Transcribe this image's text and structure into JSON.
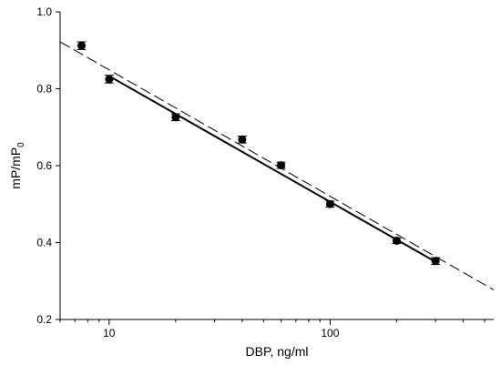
{
  "chart_data": {
    "type": "scatter",
    "xlabel": "DBP, ng/ml",
    "ylabel_main": "mP/mP",
    "ylabel_sub": "0",
    "xscale": "log",
    "xlim": [
      6,
      550
    ],
    "ylim": [
      0.2,
      1.0
    ],
    "yticks": [
      0.2,
      0.4,
      0.6,
      0.8,
      1.0
    ],
    "ytick_labels": [
      "0.2",
      "0.4",
      "0.6",
      "0.8",
      "1.0"
    ],
    "xticks": [
      10,
      100
    ],
    "xtick_labels": [
      "10",
      "100"
    ],
    "grid": false,
    "legend": "none",
    "points": [
      {
        "x": 7.5,
        "y": 0.912,
        "err": 0.01
      },
      {
        "x": 10,
        "y": 0.825,
        "err": 0.01
      },
      {
        "x": 20,
        "y": 0.726,
        "err": 0.009
      },
      {
        "x": 40,
        "y": 0.668,
        "err": 0.009
      },
      {
        "x": 60,
        "y": 0.601,
        "err": 0.008
      },
      {
        "x": 100,
        "y": 0.5,
        "err": 0.008
      },
      {
        "x": 200,
        "y": 0.405,
        "err": 0.007
      },
      {
        "x": 300,
        "y": 0.352,
        "err": 0.009
      }
    ],
    "fit_solid": {
      "x": [
        10,
        300
      ],
      "y": [
        0.833,
        0.35
      ]
    },
    "fit_dashed": {
      "x": [
        6,
        550
      ],
      "y": [
        0.922,
        0.277
      ]
    },
    "colors": {
      "points": "#000000",
      "lines": "#000000"
    }
  }
}
